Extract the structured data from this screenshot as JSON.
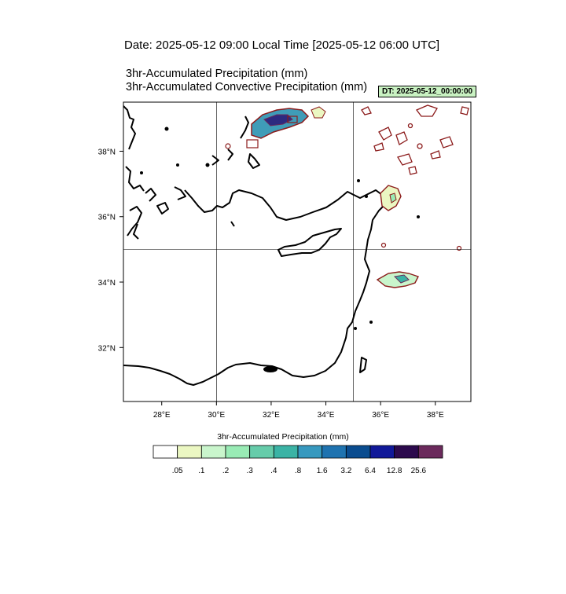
{
  "header": {
    "date_line": "Date: 2025-05-12  09:00 Local Time [2025-05-12  06:00 UTC]",
    "field_title_1": "3hr-Accumulated Precipitation   (mm)",
    "field_title_2": "3hr-Accumulated Convective Precipitation   (mm)",
    "dt_badge": "DT: 2025-05-12_00:00:00"
  },
  "map": {
    "lon_range": [
      26.6,
      39.3
    ],
    "lat_range": [
      30.35,
      39.5
    ],
    "lon_ticks": [
      {
        "value": 28,
        "label": "28°E"
      },
      {
        "value": 30,
        "label": "30°E"
      },
      {
        "value": 32,
        "label": "32°E"
      },
      {
        "value": 34,
        "label": "34°E"
      },
      {
        "value": 36,
        "label": "36°E"
      },
      {
        "value": 38,
        "label": "38°E"
      }
    ],
    "lat_ticks": [
      {
        "value": 32,
        "label": "32°N"
      },
      {
        "value": 34,
        "label": "34°N"
      },
      {
        "value": 36,
        "label": "36°N"
      },
      {
        "value": 38,
        "label": "38°N"
      }
    ],
    "gridlines": {
      "lon": [
        30,
        35
      ],
      "lat": [
        35
      ]
    },
    "precip_areas": [
      {
        "name": "north-aegean-coast",
        "lon": 31.7,
        "lat": 38.9
      },
      {
        "name": "nw-syria",
        "lon": 36.5,
        "lat": 36.4
      },
      {
        "name": "northeast-cluster",
        "lon": 37.5,
        "lat": 38.2
      },
      {
        "name": "syria-lebanon",
        "lon": 37.0,
        "lat": 34.3
      }
    ]
  },
  "colorbar": {
    "title": "3hr-Accumulated Precipitation  (mm)",
    "colors": [
      "#ffffff",
      "#ebf7c2",
      "#c9f5cc",
      "#99ebb5",
      "#66ccaa",
      "#3bb3a5",
      "#3799bf",
      "#1f73b0",
      "#0a4c8f",
      "#111999",
      "#2c0a4d",
      "#6b2a5c"
    ],
    "labels": [
      ".05",
      ".1",
      ".2",
      ".3",
      ".4",
      ".8",
      "1.6",
      "3.2",
      "6.4",
      "12.8",
      "25.6"
    ]
  }
}
